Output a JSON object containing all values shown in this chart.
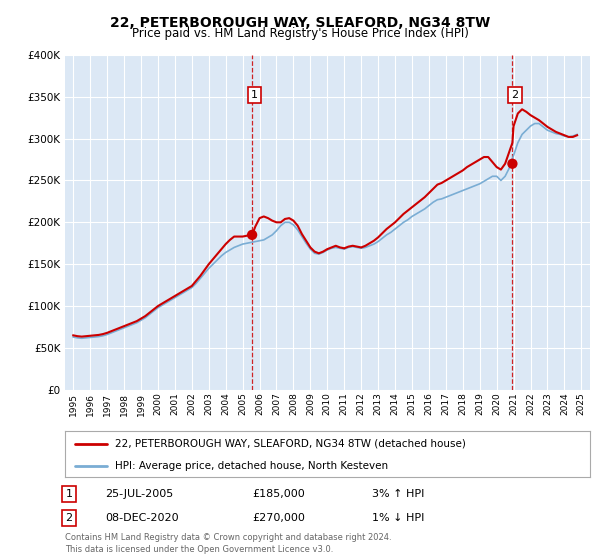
{
  "title": "22, PETERBOROUGH WAY, SLEAFORD, NG34 8TW",
  "subtitle": "Price paid vs. HM Land Registry's House Price Index (HPI)",
  "legend_line1": "22, PETERBOROUGH WAY, SLEAFORD, NG34 8TW (detached house)",
  "legend_line2": "HPI: Average price, detached house, North Kesteven",
  "footer_line1": "Contains HM Land Registry data © Crown copyright and database right 2024.",
  "footer_line2": "This data is licensed under the Open Government Licence v3.0.",
  "annotation1_label": "1",
  "annotation1_date": "25-JUL-2005",
  "annotation1_price": "£185,000",
  "annotation1_hpi": "3% ↑ HPI",
  "annotation2_label": "2",
  "annotation2_date": "08-DEC-2020",
  "annotation2_price": "£270,000",
  "annotation2_hpi": "1% ↓ HPI",
  "sale1_x": 2005.56,
  "sale1_y": 185000,
  "sale2_x": 2020.93,
  "sale2_y": 270000,
  "vline1_x": 2005.56,
  "vline2_x": 2020.93,
  "hpi_color": "#7aadd4",
  "price_color": "#cc0000",
  "dot_color": "#cc0000",
  "vline_color": "#cc0000",
  "bg_color": "#dce8f5",
  "plot_bg": "#ffffff",
  "grid_color": "#ffffff",
  "ylim": [
    0,
    400000
  ],
  "xlim": [
    1994.5,
    2025.5
  ],
  "yticks": [
    0,
    50000,
    100000,
    150000,
    200000,
    250000,
    300000,
    350000,
    400000
  ],
  "ytick_labels": [
    "£0",
    "£50K",
    "£100K",
    "£150K",
    "£200K",
    "£250K",
    "£300K",
    "£350K",
    "£400K"
  ],
  "xticks": [
    1995,
    1996,
    1997,
    1998,
    1999,
    2000,
    2001,
    2002,
    2003,
    2004,
    2005,
    2006,
    2007,
    2008,
    2009,
    2010,
    2011,
    2012,
    2013,
    2014,
    2015,
    2016,
    2017,
    2018,
    2019,
    2020,
    2021,
    2022,
    2023,
    2024,
    2025
  ],
  "hpi_x": [
    1995.0,
    1995.25,
    1995.5,
    1995.75,
    1996.0,
    1996.25,
    1996.5,
    1996.75,
    1997.0,
    1997.25,
    1997.5,
    1997.75,
    1998.0,
    1998.25,
    1998.5,
    1998.75,
    1999.0,
    1999.25,
    1999.5,
    1999.75,
    2000.0,
    2000.25,
    2000.5,
    2000.75,
    2001.0,
    2001.25,
    2001.5,
    2001.75,
    2002.0,
    2002.25,
    2002.5,
    2002.75,
    2003.0,
    2003.25,
    2003.5,
    2003.75,
    2004.0,
    2004.25,
    2004.5,
    2004.75,
    2005.0,
    2005.25,
    2005.5,
    2005.75,
    2006.0,
    2006.25,
    2006.5,
    2006.75,
    2007.0,
    2007.25,
    2007.5,
    2007.75,
    2008.0,
    2008.25,
    2008.5,
    2008.75,
    2009.0,
    2009.25,
    2009.5,
    2009.75,
    2010.0,
    2010.25,
    2010.5,
    2010.75,
    2011.0,
    2011.25,
    2011.5,
    2011.75,
    2012.0,
    2012.25,
    2012.5,
    2012.75,
    2013.0,
    2013.25,
    2013.5,
    2013.75,
    2014.0,
    2014.25,
    2014.5,
    2014.75,
    2015.0,
    2015.25,
    2015.5,
    2015.75,
    2016.0,
    2016.25,
    2016.5,
    2016.75,
    2017.0,
    2017.25,
    2017.5,
    2017.75,
    2018.0,
    2018.25,
    2018.5,
    2018.75,
    2019.0,
    2019.25,
    2019.5,
    2019.75,
    2020.0,
    2020.25,
    2020.5,
    2020.75,
    2021.0,
    2021.25,
    2021.5,
    2021.75,
    2022.0,
    2022.25,
    2022.5,
    2022.75,
    2023.0,
    2023.25,
    2023.5,
    2023.75,
    2024.0,
    2024.25,
    2024.5,
    2024.75
  ],
  "hpi_y": [
    63000,
    62000,
    61500,
    62000,
    62500,
    63000,
    63500,
    64500,
    66000,
    68000,
    70000,
    72000,
    74000,
    76000,
    78000,
    80000,
    83000,
    86000,
    90000,
    94000,
    98000,
    101000,
    104000,
    107000,
    110000,
    113000,
    116000,
    119000,
    122000,
    127000,
    133000,
    139000,
    145000,
    150000,
    155000,
    160000,
    164000,
    167000,
    170000,
    172000,
    174000,
    175000,
    176000,
    177000,
    178000,
    179000,
    182000,
    185000,
    190000,
    196000,
    200000,
    200000,
    197000,
    191000,
    183000,
    175000,
    168000,
    163000,
    162000,
    164000,
    167000,
    169000,
    170000,
    169000,
    168000,
    170000,
    171000,
    170000,
    169000,
    170000,
    172000,
    174000,
    177000,
    181000,
    185000,
    188000,
    192000,
    196000,
    200000,
    203000,
    207000,
    210000,
    213000,
    216000,
    220000,
    224000,
    227000,
    228000,
    230000,
    232000,
    234000,
    236000,
    238000,
    240000,
    242000,
    244000,
    246000,
    249000,
    252000,
    255000,
    255000,
    250000,
    255000,
    265000,
    280000,
    295000,
    305000,
    310000,
    315000,
    318000,
    318000,
    314000,
    310000,
    308000,
    306000,
    305000,
    303000,
    302000,
    303000,
    305000
  ],
  "price_x": [
    1995.0,
    1995.25,
    1995.5,
    1995.75,
    1996.0,
    1996.25,
    1996.5,
    1996.75,
    1997.0,
    1997.25,
    1997.5,
    1997.75,
    1998.0,
    1998.25,
    1998.5,
    1998.75,
    1999.0,
    1999.25,
    1999.5,
    1999.75,
    2000.0,
    2000.25,
    2000.5,
    2000.75,
    2001.0,
    2001.25,
    2001.5,
    2001.75,
    2002.0,
    2002.25,
    2002.5,
    2002.75,
    2003.0,
    2003.25,
    2003.5,
    2003.75,
    2004.0,
    2004.25,
    2004.5,
    2004.75,
    2005.0,
    2005.25,
    2005.56,
    2005.75,
    2006.0,
    2006.25,
    2006.5,
    2006.75,
    2007.0,
    2007.25,
    2007.5,
    2007.75,
    2008.0,
    2008.25,
    2008.5,
    2008.75,
    2009.0,
    2009.25,
    2009.5,
    2009.75,
    2010.0,
    2010.25,
    2010.5,
    2010.75,
    2011.0,
    2011.25,
    2011.5,
    2011.75,
    2012.0,
    2012.25,
    2012.5,
    2012.75,
    2013.0,
    2013.25,
    2013.5,
    2013.75,
    2014.0,
    2014.25,
    2014.5,
    2014.75,
    2015.0,
    2015.25,
    2015.5,
    2015.75,
    2016.0,
    2016.25,
    2016.5,
    2016.75,
    2017.0,
    2017.25,
    2017.5,
    2017.75,
    2018.0,
    2018.25,
    2018.5,
    2018.75,
    2019.0,
    2019.25,
    2019.5,
    2019.75,
    2020.0,
    2020.25,
    2020.5,
    2020.93,
    2021.0,
    2021.25,
    2021.5,
    2021.75,
    2022.0,
    2022.25,
    2022.5,
    2022.75,
    2023.0,
    2023.25,
    2023.5,
    2023.75,
    2024.0,
    2024.25,
    2024.5,
    2024.75
  ],
  "price_y": [
    65000,
    64000,
    63500,
    64000,
    64500,
    65000,
    65500,
    66500,
    68000,
    70000,
    72000,
    74000,
    76000,
    78000,
    80000,
    82000,
    85000,
    88000,
    92000,
    96000,
    100000,
    103000,
    106000,
    109000,
    112000,
    115000,
    118000,
    121000,
    124000,
    130000,
    136000,
    143000,
    150000,
    156000,
    162000,
    168000,
    174000,
    179000,
    183000,
    183000,
    183000,
    184000,
    185000,
    195000,
    205000,
    207000,
    205000,
    202000,
    200000,
    200000,
    204000,
    205000,
    202000,
    196000,
    186000,
    178000,
    170000,
    165000,
    163000,
    165000,
    168000,
    170000,
    172000,
    170000,
    169000,
    171000,
    172000,
    171000,
    170000,
    172000,
    175000,
    178000,
    182000,
    187000,
    192000,
    196000,
    200000,
    205000,
    210000,
    214000,
    218000,
    222000,
    226000,
    230000,
    235000,
    240000,
    245000,
    247000,
    250000,
    253000,
    256000,
    259000,
    262000,
    266000,
    269000,
    272000,
    275000,
    278000,
    278000,
    272000,
    266000,
    263000,
    270000,
    295000,
    315000,
    330000,
    335000,
    332000,
    328000,
    325000,
    322000,
    318000,
    314000,
    311000,
    308000,
    306000,
    304000,
    302000,
    302000,
    304000
  ]
}
